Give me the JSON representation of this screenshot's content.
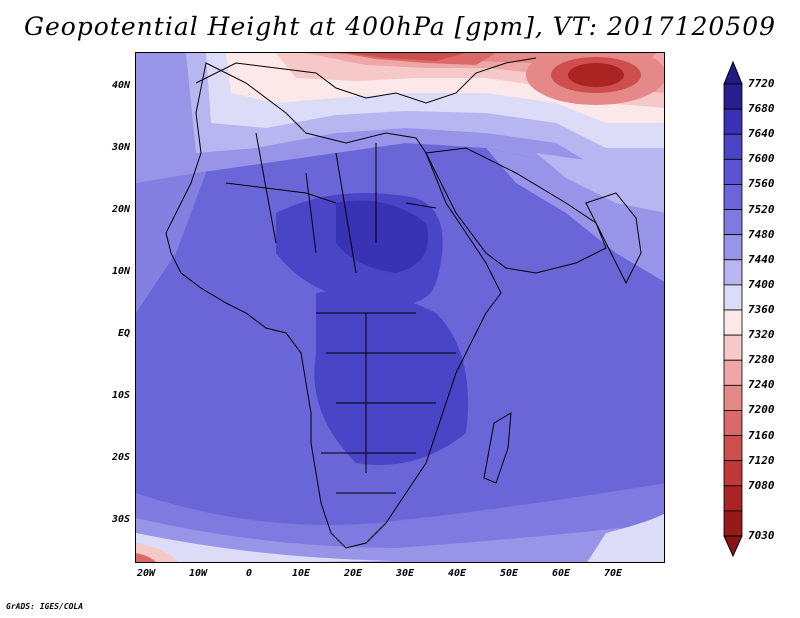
{
  "title": "Geopotential Height at 400hPa [gpm], VT: 2017120509",
  "credit": "GrADS: IGES/COLA",
  "latitude_labels": [
    "40N",
    "30N",
    "20N",
    "10N",
    "EQ",
    "10S",
    "20S",
    "30S"
  ],
  "longitude_labels": [
    "20W",
    "10W",
    "0",
    "10E",
    "20E",
    "30E",
    "40E",
    "50E",
    "60E",
    "70E"
  ],
  "colorbar": {
    "levels": [
      7720,
      7680,
      7640,
      7600,
      7560,
      7520,
      7480,
      7440,
      7400,
      7360,
      7320,
      7280,
      7240,
      7200,
      7160,
      7120,
      7080,
      7030
    ],
    "labels": [
      "7720",
      "7680",
      "7640",
      "7600",
      "7560",
      "7520",
      "7480",
      "7440",
      "7400",
      "7360",
      "7320",
      "7280",
      "7240",
      "7200",
      "7160",
      "7120",
      "7080",
      "7030"
    ],
    "colors": [
      "#2a1e8e",
      "#3a32b4",
      "#4a44c6",
      "#5a54d2",
      "#6a66d8",
      "#7e7ae0",
      "#9894e8",
      "#b8b6f0",
      "#dcdcf8",
      "#fce8e8",
      "#f6c8c8",
      "#eea6a6",
      "#e48888",
      "#da6a6a",
      "#ce4e4e",
      "#c03838",
      "#aa2424",
      "#961a1a"
    ],
    "top_arrow_color": "#241a86",
    "bottom_arrow_color": "#8a1414"
  },
  "map": {
    "variable": "Geopotential Height",
    "level": "400hPa",
    "units": "gpm",
    "valid_time": "2017120509"
  }
}
